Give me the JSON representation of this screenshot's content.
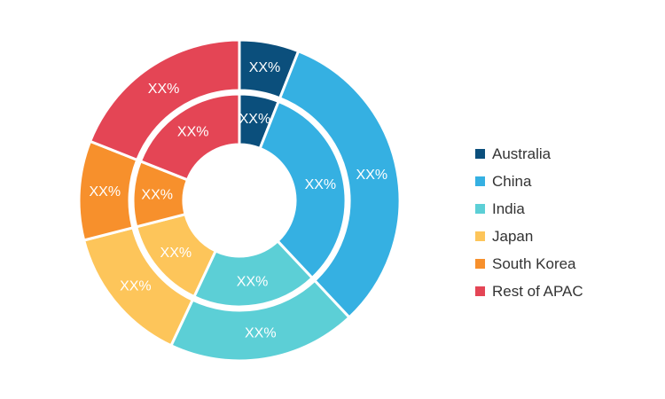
{
  "chart_data": {
    "type": "pie",
    "style": "nested-donut",
    "categories": [
      "Australia",
      "China",
      "India",
      "Japan",
      "South Korea",
      "Rest of APAC"
    ],
    "colors": [
      "#0b4f7c",
      "#35b0e2",
      "#5ccfd6",
      "#fdc55a",
      "#f7902c",
      "#e44555"
    ],
    "series": [
      {
        "ring": "outer",
        "values": [
          6,
          32,
          19,
          14,
          10,
          19
        ],
        "labels": [
          "XX%",
          "XX%",
          "XX%",
          "XX%",
          "XX%",
          "XX%"
        ]
      },
      {
        "ring": "inner",
        "values": [
          6,
          32,
          19,
          14,
          10,
          19
        ],
        "labels": [
          "XX%",
          "XX%",
          "XX%",
          "XX%",
          "XX%",
          "XX%"
        ]
      }
    ],
    "legend_position": "right"
  }
}
